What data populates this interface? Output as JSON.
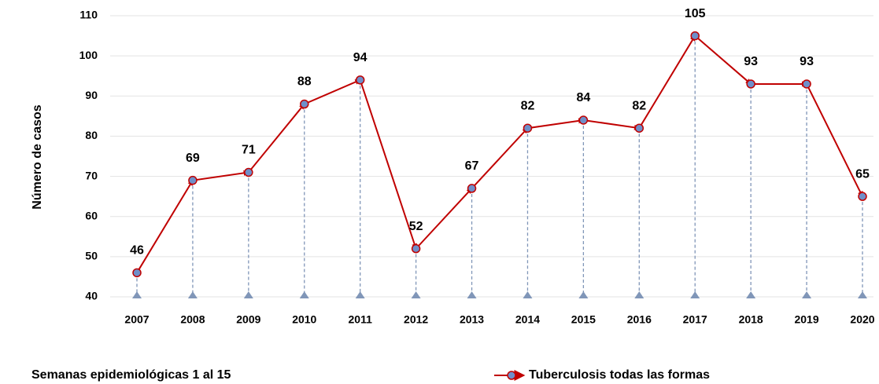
{
  "chart_data": {
    "type": "line",
    "ylabel": "Número de casos",
    "annotation": "Semanas epidemiológicas 1 al 15",
    "categories": [
      "2007",
      "2008",
      "2009",
      "2010",
      "2011",
      "2012",
      "2013",
      "2014",
      "2015",
      "2016",
      "2017",
      "2018",
      "2019",
      "2020"
    ],
    "series": [
      {
        "name": "Tuberculosis todas las formas",
        "color": "#c00000",
        "values": [
          46,
          69,
          71,
          88,
          94,
          52,
          67,
          82,
          84,
          82,
          105,
          93,
          93,
          65
        ]
      }
    ],
    "ylim": [
      40,
      110
    ],
    "yticks": [
      40,
      50,
      60,
      70,
      80,
      90,
      100,
      110
    ],
    "grid": true,
    "legend": "bottom-right"
  }
}
